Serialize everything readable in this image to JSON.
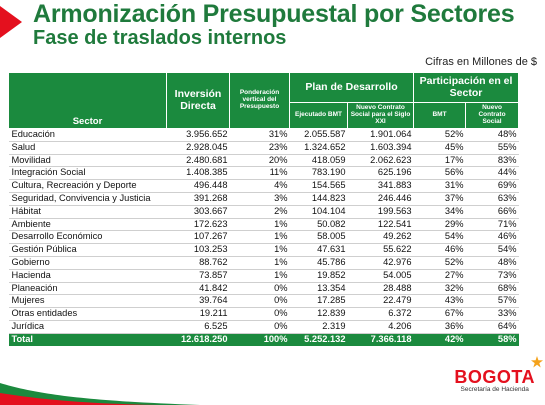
{
  "header": {
    "title": "Armonización Presupuestal por Sectores",
    "subtitle": "Fase de traslados internos",
    "note": "Cifras en Millones de $"
  },
  "table": {
    "col_sector": "Sector",
    "col_inversion": "Inversión Directa",
    "col_ponderacion": "Ponderación vertical del Presupuesto",
    "col_plan": "Plan de Desarrollo",
    "col_ejecutado": "Ejecutado BMT",
    "col_nuevo": "Nuevo Contrato Social para el Siglo XXI",
    "col_participacion": "Participación en el Sector",
    "col_part_bmt": "BMT",
    "col_part_nuevo": "Nuevo Contrato Social",
    "rows": [
      {
        "sector": "Educación",
        "inversion": "3.956.652",
        "ponderacion": "31%",
        "ejecutado": "2.055.587",
        "nuevo": "1.901.064",
        "part_bmt": "52%",
        "part_nuevo": "48%"
      },
      {
        "sector": "Salud",
        "inversion": "2.928.045",
        "ponderacion": "23%",
        "ejecutado": "1.324.652",
        "nuevo": "1.603.394",
        "part_bmt": "45%",
        "part_nuevo": "55%"
      },
      {
        "sector": "Movilidad",
        "inversion": "2.480.681",
        "ponderacion": "20%",
        "ejecutado": "418.059",
        "nuevo": "2.062.623",
        "part_bmt": "17%",
        "part_nuevo": "83%"
      },
      {
        "sector": "Integración Social",
        "inversion": "1.408.385",
        "ponderacion": "11%",
        "ejecutado": "783.190",
        "nuevo": "625.196",
        "part_bmt": "56%",
        "part_nuevo": "44%"
      },
      {
        "sector": "Cultura, Recreación y Deporte",
        "inversion": "496.448",
        "ponderacion": "4%",
        "ejecutado": "154.565",
        "nuevo": "341.883",
        "part_bmt": "31%",
        "part_nuevo": "69%"
      },
      {
        "sector": "Seguridad, Convivencia y Justicia",
        "inversion": "391.268",
        "ponderacion": "3%",
        "ejecutado": "144.823",
        "nuevo": "246.446",
        "part_bmt": "37%",
        "part_nuevo": "63%"
      },
      {
        "sector": "Hábitat",
        "inversion": "303.667",
        "ponderacion": "2%",
        "ejecutado": "104.104",
        "nuevo": "199.563",
        "part_bmt": "34%",
        "part_nuevo": "66%"
      },
      {
        "sector": "Ambiente",
        "inversion": "172.623",
        "ponderacion": "1%",
        "ejecutado": "50.082",
        "nuevo": "122.541",
        "part_bmt": "29%",
        "part_nuevo": "71%"
      },
      {
        "sector": "Desarrollo Económico",
        "inversion": "107.267",
        "ponderacion": "1%",
        "ejecutado": "58.005",
        "nuevo": "49.262",
        "part_bmt": "54%",
        "part_nuevo": "46%"
      },
      {
        "sector": "Gestión Pública",
        "inversion": "103.253",
        "ponderacion": "1%",
        "ejecutado": "47.631",
        "nuevo": "55.622",
        "part_bmt": "46%",
        "part_nuevo": "54%"
      },
      {
        "sector": "Gobierno",
        "inversion": "88.762",
        "ponderacion": "1%",
        "ejecutado": "45.786",
        "nuevo": "42.976",
        "part_bmt": "52%",
        "part_nuevo": "48%"
      },
      {
        "sector": "Hacienda",
        "inversion": "73.857",
        "ponderacion": "1%",
        "ejecutado": "19.852",
        "nuevo": "54.005",
        "part_bmt": "27%",
        "part_nuevo": "73%"
      },
      {
        "sector": "Planeación",
        "inversion": "41.842",
        "ponderacion": "0%",
        "ejecutado": "13.354",
        "nuevo": "28.488",
        "part_bmt": "32%",
        "part_nuevo": "68%"
      },
      {
        "sector": "Mujeres",
        "inversion": "39.764",
        "ponderacion": "0%",
        "ejecutado": "17.285",
        "nuevo": "22.479",
        "part_bmt": "43%",
        "part_nuevo": "57%"
      },
      {
        "sector": "Otras entidades",
        "inversion": "19.211",
        "ponderacion": "0%",
        "ejecutado": "12.839",
        "nuevo": "6.372",
        "part_bmt": "67%",
        "part_nuevo": "33%"
      },
      {
        "sector": "Jurídica",
        "inversion": "6.525",
        "ponderacion": "0%",
        "ejecutado": "2.319",
        "nuevo": "4.206",
        "part_bmt": "36%",
        "part_nuevo": "64%"
      }
    ],
    "total": {
      "sector": "Total",
      "inversion": "12.618.250",
      "ponderacion": "100%",
      "ejecutado": "5.252.132",
      "nuevo": "7.366.118",
      "part_bmt": "42%",
      "part_nuevo": "58%"
    }
  },
  "logo": {
    "name": "BOGOTA",
    "subtitle": "Secretaría de Hacienda"
  },
  "colors": {
    "green": "#1b8a3e",
    "red": "#e4101e",
    "title_green": "#1f7a3c"
  }
}
